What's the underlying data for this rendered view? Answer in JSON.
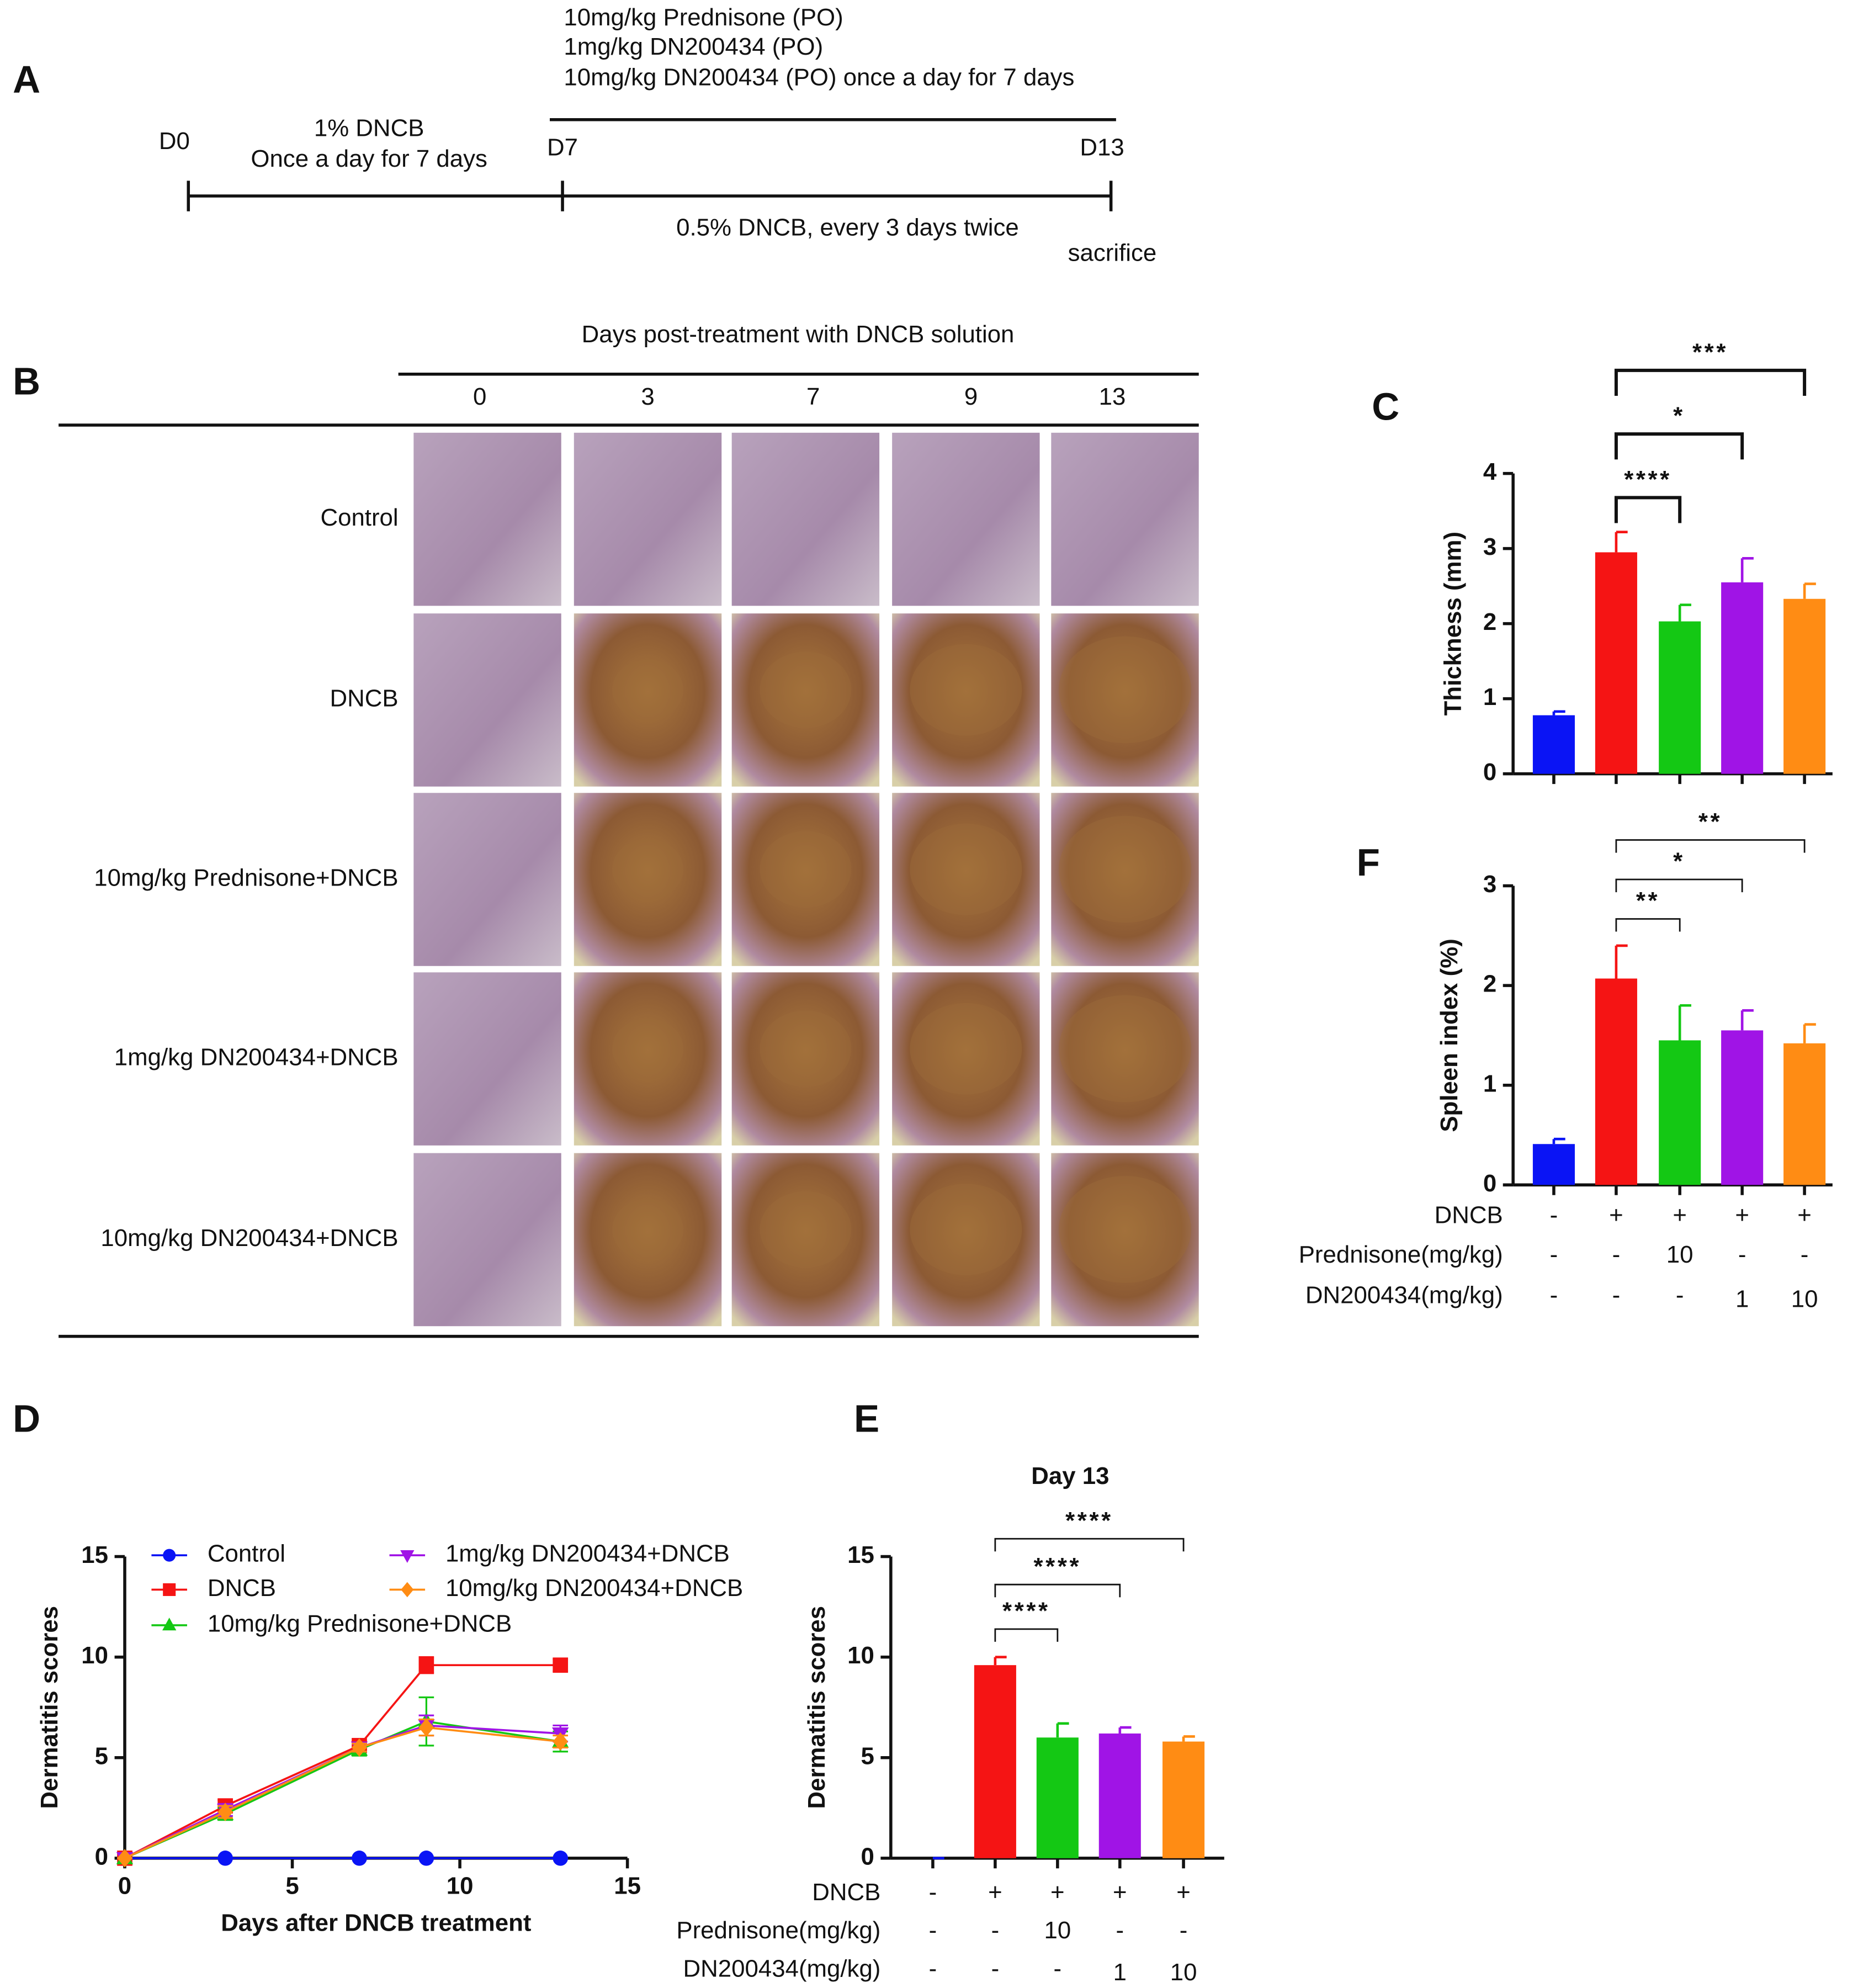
{
  "timeline": {
    "panel": "A",
    "treatments": [
      "10mg/kg Prednisone (PO)",
      "1mg/kg DN200434 (PO)",
      "10mg/kg DN200434 (PO) once a day for 7 days"
    ],
    "phase1": [
      "1% DNCB",
      "Once a day for 7 days"
    ],
    "days": [
      "D0",
      "D7",
      "D13"
    ],
    "phase2": "0.5% DNCB, every 3 days twice",
    "end": "sacrifice"
  },
  "photos": {
    "panel": "B",
    "header": "Days post-treatment with DNCB solution",
    "days": [
      "0",
      "3",
      "7",
      "9",
      "13"
    ],
    "rows": [
      "Control",
      "DNCB",
      "10mg/kg Prednisone+DNCB",
      "1mg/kg DN200434+DNCB",
      "10mg/kg DN200434+DNCB"
    ]
  },
  "chart_data": [
    {
      "type": "bar",
      "panel": "C",
      "ylabel": "Thickness (mm)",
      "categories": [
        null,
        null,
        null,
        null,
        null
      ],
      "values": [
        0.78,
        2.95,
        2.03,
        2.55,
        2.33
      ],
      "errors": [
        0.05,
        0.27,
        0.22,
        0.32,
        0.2
      ],
      "colors": [
        "#0a14f5",
        "#f51414",
        "#14c814",
        "#a014e6",
        "#ff8c14"
      ],
      "ylim": [
        0,
        4
      ],
      "yticks": [
        0,
        1,
        2,
        3,
        4
      ],
      "significance": [
        "****",
        "*",
        "***"
      ]
    },
    {
      "type": "bar",
      "panel": "F",
      "ylabel": "Spleen index (%)",
      "categories": [
        null,
        null,
        null,
        null,
        null
      ],
      "values": [
        0.41,
        2.07,
        1.45,
        1.55,
        1.42
      ],
      "errors": [
        0.05,
        0.33,
        0.35,
        0.2,
        0.19
      ],
      "colors": [
        "#0a14f5",
        "#f51414",
        "#14c814",
        "#a014e6",
        "#ff8c14"
      ],
      "ylim": [
        0,
        3
      ],
      "yticks": [
        0,
        1,
        2,
        3
      ],
      "significance": [
        "**",
        "*",
        "**"
      ],
      "table": [
        {
          "label": "DNCB",
          "cells": [
            "-",
            "+",
            "+",
            "+",
            "+"
          ]
        },
        {
          "label": "Prednisone(mg/kg)",
          "cells": [
            "-",
            "-",
            "10",
            "-",
            "-"
          ]
        },
        {
          "label": "DN200434(mg/kg)",
          "cells": [
            "-",
            "-",
            "-",
            "1",
            "10"
          ]
        }
      ]
    },
    {
      "type": "line",
      "panel": "D",
      "xlabel": "Days after DNCB treatment",
      "ylabel": "Dermatitis scores",
      "x": [
        0,
        3,
        7,
        9,
        13
      ],
      "series": [
        {
          "name": "Control",
          "color": "#0a14f5",
          "marker": "circle",
          "values": [
            0,
            0,
            0,
            0,
            0
          ],
          "errors": [
            0,
            0,
            0,
            0,
            0
          ]
        },
        {
          "name": "DNCB",
          "color": "#f51414",
          "marker": "square",
          "values": [
            0,
            2.6,
            5.6,
            9.6,
            9.6
          ],
          "errors": [
            0,
            0.3,
            0.2,
            0.4,
            0.3
          ]
        },
        {
          "name": "10mg/kg Prednisone+DNCB",
          "color": "#14c814",
          "marker": "triangle",
          "values": [
            0,
            2.2,
            5.4,
            6.8,
            5.8
          ],
          "errors": [
            0,
            0.3,
            0.3,
            1.2,
            0.5
          ]
        },
        {
          "name": "1mg/kg DN200434+DNCB",
          "color": "#a014e6",
          "marker": "triangle-down",
          "values": [
            0,
            2.4,
            5.5,
            6.6,
            6.2
          ],
          "errors": [
            0,
            0.3,
            0.2,
            0.5,
            0.4
          ]
        },
        {
          "name": "10mg/kg DN200434+DNCB",
          "color": "#ff8c14",
          "marker": "diamond",
          "values": [
            0,
            2.3,
            5.5,
            6.5,
            5.8
          ],
          "errors": [
            0,
            0.3,
            0.2,
            0.4,
            0.3
          ]
        }
      ],
      "xlim": [
        0,
        15
      ],
      "xticks": [
        0,
        5,
        10,
        15
      ],
      "ylim": [
        0,
        15
      ],
      "yticks": [
        0,
        5,
        10,
        15
      ]
    },
    {
      "type": "bar",
      "panel": "E",
      "title": "Day 13",
      "ylabel": "Dermatitis scores",
      "categories": [
        null,
        null,
        null,
        null,
        null
      ],
      "values": [
        0,
        9.6,
        6.0,
        6.2,
        5.8
      ],
      "errors": [
        0,
        0.4,
        0.7,
        0.3,
        0.25
      ],
      "colors": [
        "#0a14f5",
        "#f51414",
        "#14c814",
        "#a014e6",
        "#ff8c14"
      ],
      "ylim": [
        0,
        15
      ],
      "yticks": [
        0,
        5,
        10,
        15
      ],
      "significance": [
        "****",
        "****",
        "****"
      ],
      "table": [
        {
          "label": "DNCB",
          "cells": [
            "-",
            "+",
            "+",
            "+",
            "+"
          ]
        },
        {
          "label": "Prednisone(mg/kg)",
          "cells": [
            "-",
            "-",
            "10",
            "-",
            "-"
          ]
        },
        {
          "label": "DN200434(mg/kg)",
          "cells": [
            "-",
            "-",
            "-",
            "1",
            "10"
          ]
        }
      ]
    }
  ]
}
